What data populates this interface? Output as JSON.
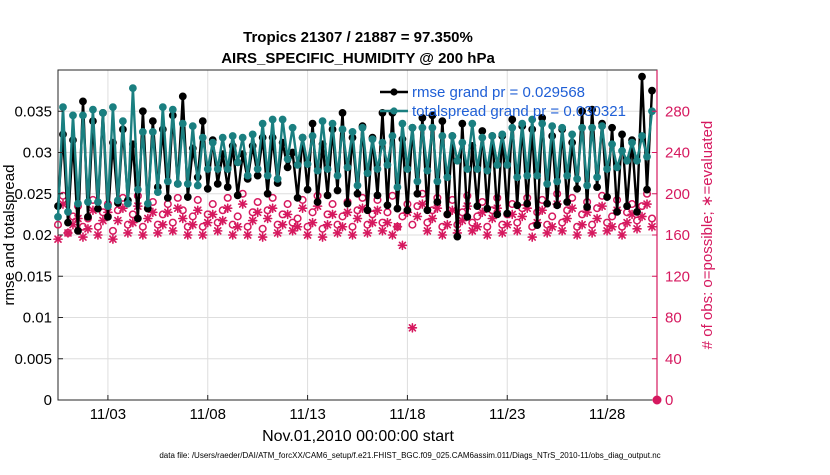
{
  "chart_data": {
    "type": "line",
    "title": "Tropics 21307 / 21887 = 97.350%",
    "subtitle": "AIRS_SPECIFIC_HUMIDITY @ 200 hPa",
    "xlabel": "Nov.01,2010 00:00:00 start",
    "ylabel_left": "rmse and totalspread",
    "ylabel_right": "# of obs: o=possible; ∗=evaluated",
    "footnote": "data file: /Users/raeder/DAI/ATM_forcXX/CAM6_setup/f.e21.FHIST_BGC.f09_025.CAM6assim.011/Diags_NTrS_2010-11/obs_diag_output.nc",
    "x_range": [
      0.5,
      30.5
    ],
    "x_ticks": [
      {
        "value": 3,
        "label": "11/03"
      },
      {
        "value": 8,
        "label": "11/08"
      },
      {
        "value": 13,
        "label": "11/13"
      },
      {
        "value": 18,
        "label": "11/18"
      },
      {
        "value": 23,
        "label": "11/23"
      },
      {
        "value": 28,
        "label": "11/28"
      }
    ],
    "ylim_left": [
      0,
      0.04
    ],
    "y_ticks_left": [
      {
        "value": 0,
        "label": "0"
      },
      {
        "value": 0.005,
        "label": "0.005"
      },
      {
        "value": 0.01,
        "label": "0.01"
      },
      {
        "value": 0.015,
        "label": "0.015"
      },
      {
        "value": 0.02,
        "label": "0.02"
      },
      {
        "value": 0.025,
        "label": "0.025"
      },
      {
        "value": 0.03,
        "label": "0.03"
      },
      {
        "value": 0.035,
        "label": "0.035"
      }
    ],
    "ylim_right": [
      0,
      320
    ],
    "y_ticks_right": [
      {
        "value": 0,
        "label": "0"
      },
      {
        "value": 40,
        "label": "40"
      },
      {
        "value": 80,
        "label": "80"
      },
      {
        "value": 120,
        "label": "120"
      },
      {
        "value": 160,
        "label": "160"
      },
      {
        "value": 200,
        "label": "200"
      },
      {
        "value": 240,
        "label": "240"
      },
      {
        "value": 280,
        "label": "280"
      }
    ],
    "time_step_days": 0.25,
    "series": [
      {
        "name": "rmse grand pr = 0.029568",
        "color": "#000000",
        "marker": "circle",
        "values": [
          0.0235,
          0.0322,
          0.0215,
          0.0315,
          0.0205,
          0.0362,
          0.0222,
          0.0338,
          0.0232,
          0.0348,
          0.0222,
          0.0312,
          0.0239,
          0.0328,
          0.0242,
          0.031,
          0.022,
          0.035,
          0.0232,
          0.0338,
          0.0258,
          0.0328,
          0.0245,
          0.0345,
          0.0262,
          0.0368,
          0.0246,
          0.0305,
          0.027,
          0.0338,
          0.0256,
          0.0315,
          0.0262,
          0.0298,
          0.0258,
          0.0308,
          0.0248,
          0.0298,
          0.0268,
          0.0308,
          0.0272,
          0.0318,
          0.025,
          0.0318,
          0.0263,
          0.0312,
          0.0282,
          0.03,
          0.0245,
          0.0318,
          0.0255,
          0.0335,
          0.024,
          0.031,
          0.0248,
          0.0328,
          0.0254,
          0.0348,
          0.0238,
          0.0318,
          0.025,
          0.0332,
          0.023,
          0.0318,
          0.0248,
          0.0348,
          0.0236,
          0.0348,
          0.0232,
          0.0316,
          0.023,
          0.033,
          0.025,
          0.0342,
          0.023,
          0.0345,
          0.024,
          0.0338,
          0.0225,
          0.032,
          0.0198,
          0.0335,
          0.0222,
          0.0308,
          0.0235,
          0.0326,
          0.0232,
          0.032,
          0.0225,
          0.032,
          0.0226,
          0.034,
          0.0236,
          0.0332,
          0.0238,
          0.0328,
          0.0212,
          0.0342,
          0.0238,
          0.032,
          0.0236,
          0.0328,
          0.024,
          0.0312,
          0.0256,
          0.035,
          0.0234,
          0.0352,
          0.0258,
          0.0335,
          0.0246,
          0.033,
          0.0228,
          0.0322,
          0.0235,
          0.0315,
          0.0228,
          0.0392,
          0.0255,
          0.0375
        ]
      },
      {
        "name": "totalspread grand pr = 0.030321",
        "color": "#1a7f80",
        "marker": "circle",
        "values": [
          0.0222,
          0.0355,
          0.0228,
          0.0345,
          0.0238,
          0.0345,
          0.024,
          0.0352,
          0.024,
          0.0348,
          0.0235,
          0.0355,
          0.0242,
          0.0338,
          0.0238,
          0.0378,
          0.0255,
          0.0325,
          0.0238,
          0.0325,
          0.0252,
          0.0355,
          0.0265,
          0.0352,
          0.0262,
          0.0335,
          0.0262,
          0.0332,
          0.026,
          0.0318,
          0.028,
          0.0312,
          0.028,
          0.0318,
          0.028,
          0.032,
          0.0288,
          0.0318,
          0.0272,
          0.0322,
          0.028,
          0.0335,
          0.0272,
          0.034,
          0.0268,
          0.034,
          0.0292,
          0.033,
          0.0285,
          0.0318,
          0.0286,
          0.032,
          0.0278,
          0.0338,
          0.028,
          0.0335,
          0.0272,
          0.0328,
          0.0282,
          0.0325,
          0.026,
          0.033,
          0.0275,
          0.0316,
          0.028,
          0.0312,
          0.0285,
          0.032,
          0.0258,
          0.0335,
          0.028,
          0.033,
          0.0265,
          0.033,
          0.0278,
          0.033,
          0.0265,
          0.032,
          0.027,
          0.032,
          0.029,
          0.0312,
          0.028,
          0.0335,
          0.028,
          0.0318,
          0.0278,
          0.032,
          0.0285,
          0.0322,
          0.0285,
          0.033,
          0.027,
          0.0335,
          0.0272,
          0.034,
          0.0272,
          0.0335,
          0.0262,
          0.0332,
          0.0265,
          0.033,
          0.0272,
          0.0322,
          0.0268,
          0.033,
          0.026,
          0.033,
          0.027,
          0.0332,
          0.028,
          0.031,
          0.0282,
          0.0302,
          0.029,
          0.0312,
          0.029,
          0.032,
          0.0295,
          0.035
        ]
      },
      {
        "name": "# obs possible",
        "color": "#d6195f",
        "marker": "o",
        "axis": "right",
        "values": [
          170,
          198,
          162,
          178,
          188,
          168,
          176,
          194,
          168,
          182,
          190,
          164,
          184,
          196,
          170,
          180,
          198,
          168,
          186,
          192,
          170,
          180,
          190,
          172,
          196,
          184,
          168,
          178,
          194,
          168,
          180,
          190,
          172,
          184,
          196,
          170,
          178,
          200,
          168,
          182,
          192,
          166,
          184,
          196,
          170,
          180,
          190,
          172,
          176,
          194,
          168,
          182,
          198,
          166,
          180,
          190,
          170,
          178,
          192,
          168,
          184,
          196,
          170,
          180,
          194,
          172,
          182,
          198,
          168,
          178,
          190,
          170,
          188,
          200,
          172,
          184,
          196,
          168,
          180,
          194,
          170,
          182,
          198,
          172,
          178,
          192,
          168,
          184,
          196,
          170,
          180,
          190,
          172,
          186,
          196,
          168,
          182,
          194,
          170,
          178,
          200,
          172,
          184,
          196,
          168,
          180,
          192,
          170,
          186,
          198,
          172,
          178,
          194,
          168,
          182,
          190,
          174,
          188,
          200,
          176
        ]
      },
      {
        "name": "# obs evaluated",
        "color": "#d6195f",
        "marker": "asterisk",
        "axis": "right",
        "values": [
          156,
          190,
          162,
          170,
          176,
          158,
          166,
          184,
          160,
          174,
          182,
          156,
          174,
          186,
          162,
          172,
          188,
          160,
          176,
          182,
          162,
          170,
          182,
          164,
          186,
          176,
          160,
          170,
          184,
          160,
          172,
          180,
          164,
          174,
          186,
          160,
          168,
          190,
          160,
          174,
          182,
          158,
          176,
          186,
          162,
          170,
          180,
          164,
          168,
          186,
          160,
          172,
          188,
          158,
          170,
          180,
          162,
          168,
          182,
          160,
          176,
          186,
          162,
          172,
          184,
          164,
          172,
          160,
          168,
          150,
          182,
          70,
          178,
          190,
          164,
          176,
          186,
          160,
          170,
          184,
          162,
          174,
          188,
          164,
          168,
          182,
          160,
          176,
          186,
          162,
          170,
          180,
          164,
          178,
          186,
          158,
          172,
          184,
          162,
          168,
          190,
          164,
          176,
          186,
          160,
          170,
          182,
          162,
          176,
          188,
          164,
          168,
          184,
          160,
          172,
          180,
          166,
          178,
          190,
          168
        ]
      }
    ],
    "outlier_points": [
      {
        "x": 30.5,
        "value": 0,
        "series": "# obs possible"
      }
    ],
    "legend_position": "top-right",
    "grid": true
  }
}
